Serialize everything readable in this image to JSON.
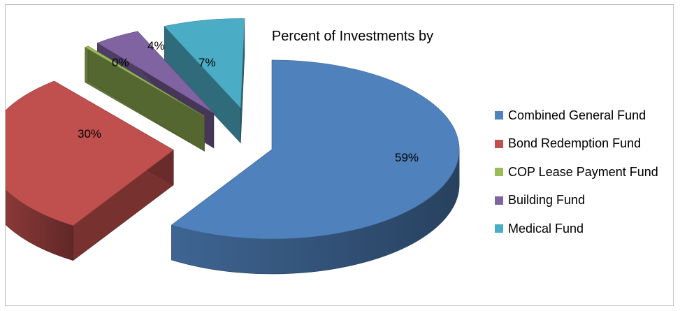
{
  "chart_data": {
    "type": "pie",
    "title": "Percent of Investments by",
    "categories": [
      "Combined General Fund",
      "Bond Redemption Fund",
      "COP Lease Payment Fund",
      "Building Fund",
      "Medical Fund"
    ],
    "values": [
      59,
      30,
      0,
      4,
      7
    ],
    "data_labels": [
      "59%",
      "30%",
      "0%",
      "4%",
      "7%"
    ],
    "colors": [
      "#4f81bd",
      "#c0504d",
      "#9bbb59",
      "#8064a2",
      "#4bacc6"
    ],
    "exploded": true,
    "style": "3d",
    "legend_position": "right"
  }
}
